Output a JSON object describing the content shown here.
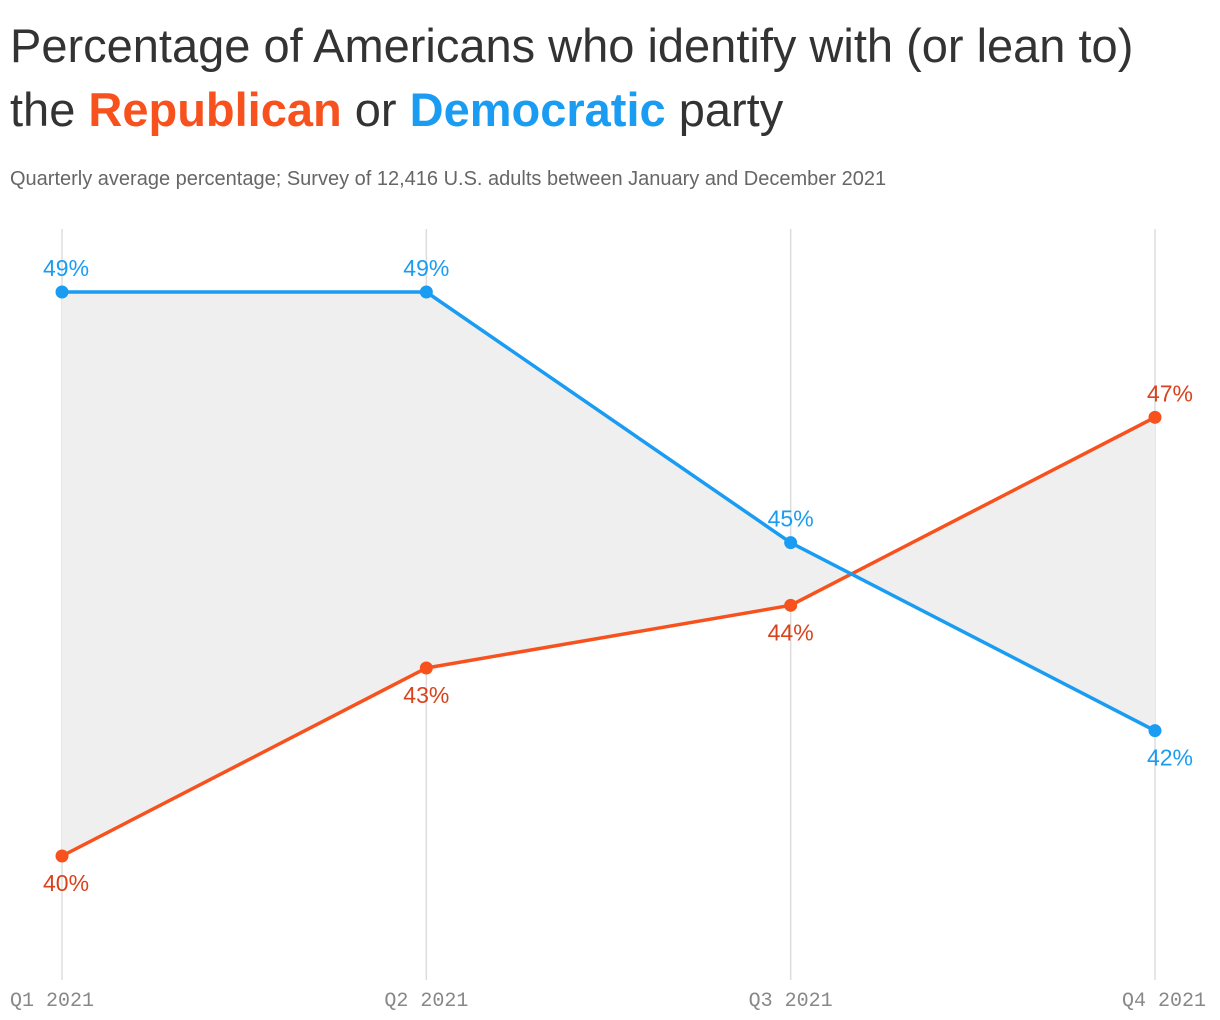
{
  "title": {
    "part1": "Percentage of Americans who identify with (or lean to) the ",
    "republican": "Republican",
    "part2": " or ",
    "democratic": "Democratic",
    "part3": " party"
  },
  "subtitle": "Quarterly average percentage; Survey of 12,416 U.S. adults between January and December 2021",
  "colors": {
    "republican": "#f7521e",
    "republican_label": "#d9421b",
    "democratic": "#1a9cf2",
    "fill_between": "#efefef",
    "gridline": "#dddddd"
  },
  "chart_data": {
    "type": "line",
    "categories": [
      "Q1 2021",
      "Q2 2021",
      "Q3 2021",
      "Q4 2021"
    ],
    "series": [
      {
        "name": "Republican",
        "values": [
          40,
          43,
          44,
          47
        ],
        "labels": [
          "40%",
          "43%",
          "44%",
          "47%"
        ]
      },
      {
        "name": "Democratic",
        "values": [
          49,
          49,
          45,
          42
        ],
        "labels": [
          "49%",
          "49%",
          "45%",
          "42%"
        ]
      }
    ],
    "fill_between_series": true,
    "grid": "vertical",
    "ylim": [
      38,
      50
    ]
  }
}
